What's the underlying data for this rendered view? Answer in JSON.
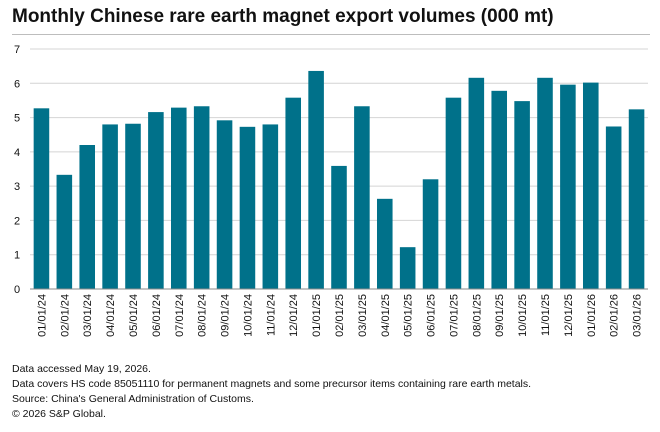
{
  "title": "Monthly Chinese rare earth magnet export volumes (000 mt)",
  "notes": {
    "accessed": "Data accessed May 19, 2026.",
    "coverage": "Data covers HS code 85051110 for permanent magnets and some precursor items containing rare earth metals.",
    "source": "Source: China's General Administration of Customs.",
    "copyright": "© 2026 S&P Global."
  },
  "colors": {
    "bar": "#00718a",
    "grid": "#d4d4d4",
    "axis": "#8a8a8a",
    "text": "#111111"
  },
  "chart_data": {
    "type": "bar",
    "title": "Monthly Chinese rare earth magnet export volumes (000 mt)",
    "xlabel": "",
    "ylabel": "",
    "ylim": [
      0,
      7
    ],
    "yticks": [
      0,
      1,
      2,
      3,
      4,
      5,
      6,
      7
    ],
    "grid": true,
    "categories": [
      "01/01/24",
      "02/01/24",
      "03/01/24",
      "04/01/24",
      "05/01/24",
      "06/01/24",
      "07/01/24",
      "08/01/24",
      "09/01/24",
      "10/01/24",
      "11/01/24",
      "12/01/24",
      "01/01/25",
      "02/01/25",
      "03/01/25",
      "04/01/25",
      "05/01/25",
      "06/01/25",
      "07/01/25",
      "08/01/25",
      "09/01/25",
      "10/01/25",
      "11/01/25",
      "12/01/25",
      "01/01/26",
      "02/01/26",
      "03/01/26"
    ],
    "values": [
      5.27,
      3.33,
      4.2,
      4.8,
      4.82,
      5.16,
      5.29,
      5.33,
      4.92,
      4.73,
      4.8,
      5.58,
      6.36,
      3.59,
      5.33,
      2.63,
      1.22,
      3.2,
      5.58,
      6.16,
      5.78,
      5.48,
      6.16,
      5.96,
      6.02,
      4.74,
      5.24
    ]
  }
}
